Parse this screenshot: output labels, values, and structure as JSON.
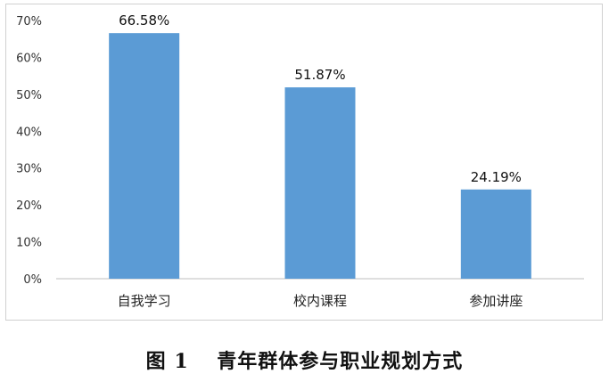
{
  "chart_data": {
    "type": "bar",
    "categories": [
      "自我学习",
      "校内课程",
      "参加讲座"
    ],
    "values": [
      66.58,
      51.87,
      24.19
    ],
    "data_labels": [
      "66.58%",
      "51.87%",
      "24.19%"
    ],
    "ylim": [
      0,
      70
    ],
    "yticks": [
      0,
      10,
      20,
      30,
      40,
      50,
      60,
      70
    ],
    "ytick_labels": [
      "0%",
      "10%",
      "20%",
      "30%",
      "40%",
      "50%",
      "60%",
      "70%"
    ],
    "bar_color": "#5b9bd5",
    "grid": false,
    "legend": "none"
  },
  "caption": "图 1　 青年群体参与职业规划方式"
}
